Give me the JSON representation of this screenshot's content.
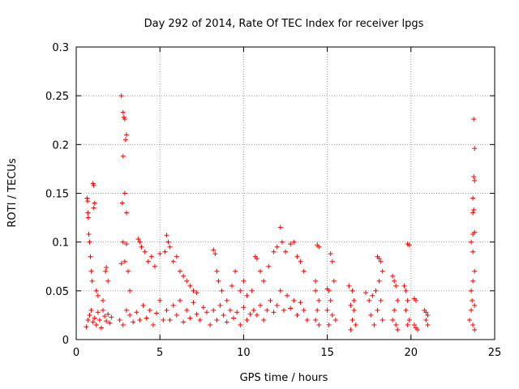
{
  "chart_data": {
    "type": "scatter",
    "title": "Day 292 of 2014, Rate Of TEC Index for receiver lpgs",
    "xlabel": "GPS time / hours",
    "ylabel": "ROTI / TECUs",
    "xlim": [
      0,
      25
    ],
    "ylim": [
      0,
      0.3
    ],
    "xticks": [
      0,
      5,
      10,
      15,
      20,
      25
    ],
    "xtick_labels": [
      "0",
      "5",
      "10",
      "15",
      "20",
      "25"
    ],
    "yticks": [
      0,
      0.05,
      0.1,
      0.15,
      0.2,
      0.25,
      0.3
    ],
    "ytick_labels": [
      "0",
      "0.05",
      "0.1",
      "0.15",
      "0.2",
      "0.25",
      "0.3"
    ],
    "grid": true,
    "marker": "+",
    "color": "#ff0000",
    "series": [
      {
        "name": "ROTI",
        "points": [
          [
            0.6,
            0.013
          ],
          [
            0.7,
            0.02
          ],
          [
            0.8,
            0.025
          ],
          [
            0.9,
            0.03
          ],
          [
            1.0,
            0.018
          ],
          [
            1.1,
            0.022
          ],
          [
            1.2,
            0.015
          ],
          [
            1.3,
            0.028
          ],
          [
            1.4,
            0.02
          ],
          [
            1.5,
            0.012
          ],
          [
            1.6,
            0.03
          ],
          [
            1.7,
            0.024
          ],
          [
            1.8,
            0.019
          ],
          [
            1.9,
            0.026
          ],
          [
            2.0,
            0.017
          ],
          [
            2.1,
            0.023
          ],
          [
            0.65,
            0.145
          ],
          [
            0.68,
            0.142
          ],
          [
            0.7,
            0.13
          ],
          [
            0.72,
            0.125
          ],
          [
            0.75,
            0.108
          ],
          [
            0.8,
            0.1
          ],
          [
            0.85,
            0.085
          ],
          [
            0.9,
            0.07
          ],
          [
            0.95,
            0.06
          ],
          [
            1.0,
            0.16
          ],
          [
            1.05,
            0.158
          ],
          [
            1.1,
            0.14
          ],
          [
            1.05,
            0.135
          ],
          [
            1.2,
            0.05
          ],
          [
            1.3,
            0.045
          ],
          [
            1.6,
            0.04
          ],
          [
            1.8,
            0.074
          ],
          [
            1.75,
            0.07
          ],
          [
            1.9,
            0.06
          ],
          [
            2.7,
            0.25
          ],
          [
            2.8,
            0.233
          ],
          [
            2.85,
            0.228
          ],
          [
            2.9,
            0.226
          ],
          [
            3.0,
            0.21
          ],
          [
            2.95,
            0.205
          ],
          [
            2.8,
            0.188
          ],
          [
            2.9,
            0.15
          ],
          [
            2.75,
            0.14
          ],
          [
            3.0,
            0.13
          ],
          [
            2.8,
            0.1
          ],
          [
            3.0,
            0.098
          ],
          [
            2.9,
            0.08
          ],
          [
            3.1,
            0.07
          ],
          [
            2.7,
            0.078
          ],
          [
            3.2,
            0.05
          ],
          [
            2.6,
            0.02
          ],
          [
            2.8,
            0.015
          ],
          [
            3.0,
            0.03
          ],
          [
            3.2,
            0.025
          ],
          [
            3.4,
            0.018
          ],
          [
            3.6,
            0.028
          ],
          [
            3.8,
            0.02
          ],
          [
            4.0,
            0.035
          ],
          [
            4.2,
            0.022
          ],
          [
            4.4,
            0.03
          ],
          [
            4.6,
            0.015
          ],
          [
            4.8,
            0.027
          ],
          [
            5.0,
            0.04
          ],
          [
            5.2,
            0.02
          ],
          [
            3.7,
            0.103
          ],
          [
            3.8,
            0.1
          ],
          [
            3.9,
            0.095
          ],
          [
            4.1,
            0.09
          ],
          [
            4.3,
            0.08
          ],
          [
            4.5,
            0.085
          ],
          [
            4.7,
            0.075
          ],
          [
            5.0,
            0.088
          ],
          [
            5.3,
            0.09
          ],
          [
            5.4,
            0.107
          ],
          [
            5.5,
            0.1
          ],
          [
            5.6,
            0.095
          ],
          [
            5.8,
            0.08
          ],
          [
            6.0,
            0.085
          ],
          [
            6.2,
            0.07
          ],
          [
            6.4,
            0.065
          ],
          [
            6.6,
            0.06
          ],
          [
            6.8,
            0.055
          ],
          [
            7.0,
            0.05
          ],
          [
            7.2,
            0.048
          ],
          [
            5.4,
            0.03
          ],
          [
            5.6,
            0.02
          ],
          [
            5.8,
            0.035
          ],
          [
            6.0,
            0.025
          ],
          [
            6.2,
            0.04
          ],
          [
            6.4,
            0.018
          ],
          [
            6.6,
            0.03
          ],
          [
            6.8,
            0.022
          ],
          [
            7.0,
            0.038
          ],
          [
            7.2,
            0.026
          ],
          [
            7.4,
            0.02
          ],
          [
            7.6,
            0.033
          ],
          [
            7.8,
            0.028
          ],
          [
            8.0,
            0.015
          ],
          [
            8.2,
            0.092
          ],
          [
            8.3,
            0.088
          ],
          [
            8.4,
            0.07
          ],
          [
            8.5,
            0.06
          ],
          [
            8.7,
            0.05
          ],
          [
            9.0,
            0.04
          ],
          [
            9.3,
            0.055
          ],
          [
            9.5,
            0.07
          ],
          [
            9.8,
            0.05
          ],
          [
            10.0,
            0.06
          ],
          [
            10.2,
            0.045
          ],
          [
            10.5,
            0.05
          ],
          [
            8.2,
            0.03
          ],
          [
            8.4,
            0.02
          ],
          [
            8.6,
            0.035
          ],
          [
            8.8,
            0.025
          ],
          [
            9.0,
            0.018
          ],
          [
            9.2,
            0.03
          ],
          [
            9.4,
            0.022
          ],
          [
            9.6,
            0.028
          ],
          [
            9.8,
            0.015
          ],
          [
            10.0,
            0.033
          ],
          [
            10.2,
            0.02
          ],
          [
            10.4,
            0.026
          ],
          [
            10.6,
            0.03
          ],
          [
            10.7,
            0.085
          ],
          [
            10.8,
            0.083
          ],
          [
            11.0,
            0.07
          ],
          [
            11.2,
            0.06
          ],
          [
            11.5,
            0.075
          ],
          [
            11.8,
            0.09
          ],
          [
            12.0,
            0.095
          ],
          [
            12.2,
            0.115
          ],
          [
            12.3,
            0.1
          ],
          [
            12.5,
            0.09
          ],
          [
            12.8,
            0.098
          ],
          [
            13.0,
            0.1
          ],
          [
            13.2,
            0.085
          ],
          [
            13.4,
            0.08
          ],
          [
            13.6,
            0.07
          ],
          [
            10.8,
            0.025
          ],
          [
            11.0,
            0.035
          ],
          [
            11.2,
            0.02
          ],
          [
            11.4,
            0.03
          ],
          [
            11.6,
            0.04
          ],
          [
            11.8,
            0.028
          ],
          [
            12.0,
            0.035
          ],
          [
            12.2,
            0.05
          ],
          [
            12.4,
            0.03
          ],
          [
            12.6,
            0.045
          ],
          [
            12.8,
            0.032
          ],
          [
            13.0,
            0.04
          ],
          [
            13.2,
            0.025
          ],
          [
            13.4,
            0.038
          ],
          [
            13.6,
            0.03
          ],
          [
            13.8,
            0.02
          ],
          [
            14.3,
            0.06
          ],
          [
            14.4,
            0.097
          ],
          [
            14.5,
            0.095
          ],
          [
            14.3,
            0.05
          ],
          [
            14.5,
            0.04
          ],
          [
            14.4,
            0.03
          ],
          [
            14.3,
            0.02
          ],
          [
            14.5,
            0.015
          ],
          [
            15.0,
            0.052
          ],
          [
            15.1,
            0.05
          ],
          [
            15.2,
            0.088
          ],
          [
            15.3,
            0.08
          ],
          [
            15.4,
            0.06
          ],
          [
            15.2,
            0.04
          ],
          [
            15.0,
            0.03
          ],
          [
            15.3,
            0.025
          ],
          [
            15.5,
            0.02
          ],
          [
            15.1,
            0.015
          ],
          [
            16.3,
            0.055
          ],
          [
            16.5,
            0.05
          ],
          [
            16.6,
            0.04
          ],
          [
            16.4,
            0.035
          ],
          [
            16.6,
            0.03
          ],
          [
            16.5,
            0.02
          ],
          [
            16.7,
            0.015
          ],
          [
            16.4,
            0.01
          ],
          [
            17.3,
            0.048
          ],
          [
            17.5,
            0.04
          ],
          [
            17.7,
            0.045
          ],
          [
            17.9,
            0.05
          ],
          [
            18.0,
            0.085
          ],
          [
            18.1,
            0.083
          ],
          [
            18.2,
            0.08
          ],
          [
            18.3,
            0.07
          ],
          [
            18.1,
            0.06
          ],
          [
            18.2,
            0.04
          ],
          [
            18.0,
            0.03
          ],
          [
            18.3,
            0.02
          ],
          [
            17.6,
            0.025
          ],
          [
            17.8,
            0.015
          ],
          [
            18.9,
            0.065
          ],
          [
            19.0,
            0.06
          ],
          [
            19.1,
            0.055
          ],
          [
            19.2,
            0.04
          ],
          [
            19.0,
            0.03
          ],
          [
            18.9,
            0.02
          ],
          [
            19.1,
            0.015
          ],
          [
            19.2,
            0.01
          ],
          [
            19.6,
            0.055
          ],
          [
            19.7,
            0.05
          ],
          [
            19.8,
            0.098
          ],
          [
            19.9,
            0.097
          ],
          [
            19.8,
            0.04
          ],
          [
            19.7,
            0.03
          ],
          [
            19.9,
            0.02
          ],
          [
            19.8,
            0.015
          ],
          [
            20.2,
            0.042
          ],
          [
            20.3,
            0.04
          ],
          [
            20.2,
            0.015
          ],
          [
            20.4,
            0.01
          ],
          [
            20.3,
            0.012
          ],
          [
            20.8,
            0.03
          ],
          [
            20.9,
            0.028
          ],
          [
            21.0,
            0.025
          ],
          [
            20.9,
            0.02
          ],
          [
            21.0,
            0.015
          ],
          [
            23.5,
            0.02
          ],
          [
            23.6,
            0.03
          ],
          [
            23.7,
            0.015
          ],
          [
            23.8,
            0.01
          ],
          [
            23.6,
            0.05
          ],
          [
            23.7,
            0.06
          ],
          [
            23.8,
            0.07
          ],
          [
            23.7,
            0.09
          ],
          [
            23.6,
            0.1
          ],
          [
            23.7,
            0.108
          ],
          [
            23.8,
            0.11
          ],
          [
            23.7,
            0.13
          ],
          [
            23.75,
            0.133
          ],
          [
            23.7,
            0.145
          ],
          [
            23.8,
            0.163
          ],
          [
            23.75,
            0.167
          ],
          [
            23.8,
            0.196
          ],
          [
            23.75,
            0.226
          ],
          [
            23.65,
            0.04
          ],
          [
            23.8,
            0.035
          ]
        ]
      }
    ]
  }
}
